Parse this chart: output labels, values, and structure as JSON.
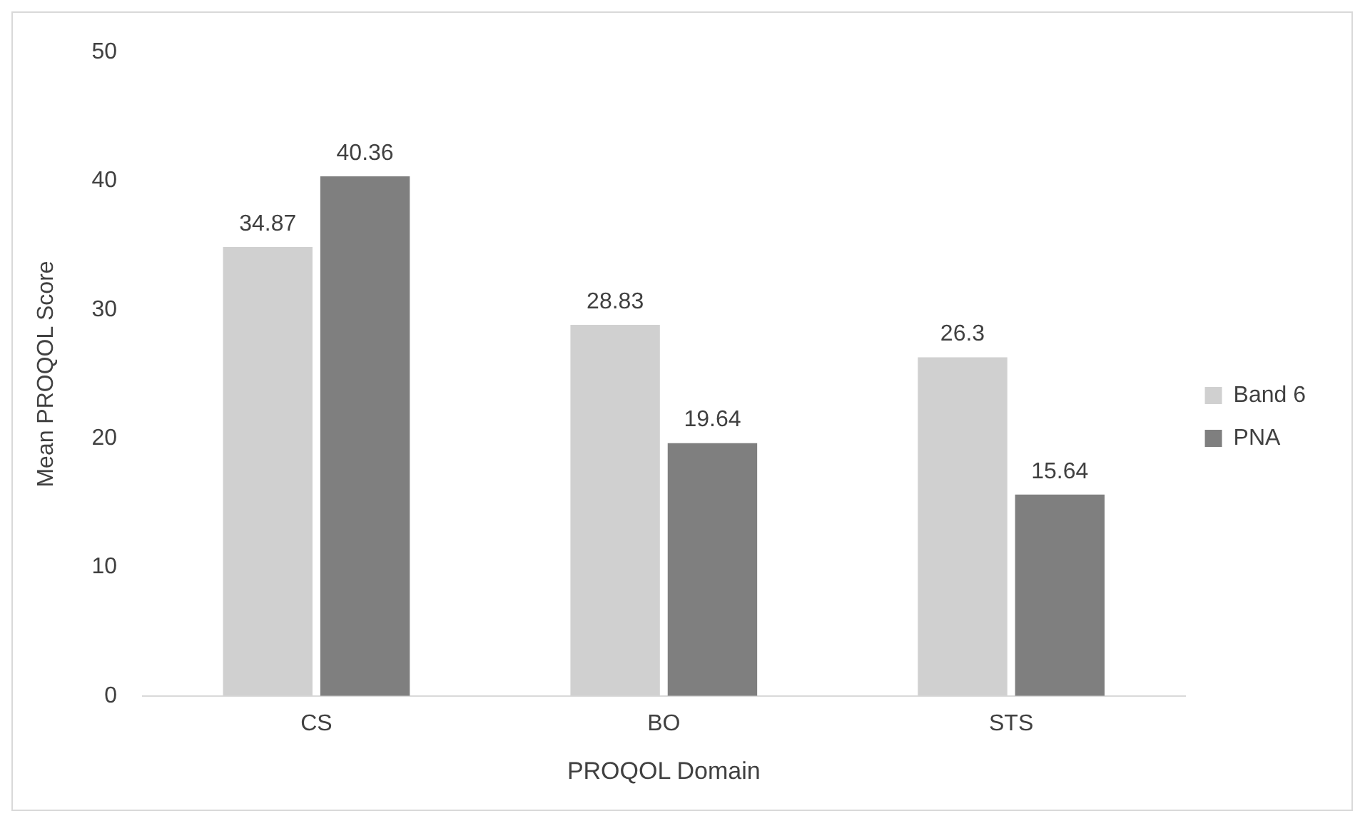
{
  "chart_data": {
    "type": "bar",
    "xlabel": "PROQOL Domain",
    "ylabel": "Mean PROQOL Score",
    "categories": [
      "CS",
      "BO",
      "STS"
    ],
    "series": [
      {
        "name": "Band 6",
        "color": "#d0d0d0",
        "values": [
          34.87,
          28.83,
          26.3
        ]
      },
      {
        "name": "PNA",
        "color": "#7f7f7f",
        "values": [
          40.36,
          19.64,
          15.64
        ]
      }
    ],
    "ylim": [
      0,
      50
    ],
    "yticks": [
      0,
      10,
      20,
      30,
      40,
      50
    ],
    "grid": false,
    "legend": "right",
    "data_labels": true
  }
}
